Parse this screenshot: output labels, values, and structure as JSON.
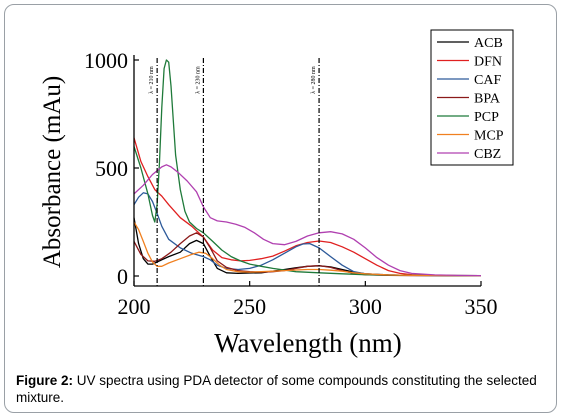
{
  "chart_data": {
    "type": "line",
    "xlabel": "Wavelength (nm)",
    "ylabel": "Absorbance (mAu)",
    "xlim": [
      200,
      350
    ],
    "ylim": [
      0,
      1000
    ],
    "x_ticks": [
      200,
      250,
      300,
      350
    ],
    "y_ticks": [
      0,
      500,
      1000
    ],
    "legend_position": "top-right",
    "grid": false,
    "annotations": [
      {
        "x": 210,
        "label": "λ = 210 nm"
      },
      {
        "x": 230,
        "label": "λ = 230 nm"
      },
      {
        "x": 280,
        "label": "λ = 280 nm"
      }
    ],
    "series": [
      {
        "name": "ACB",
        "color": "#000000",
        "points": [
          [
            200,
            270
          ],
          [
            202,
            150
          ],
          [
            204,
            80
          ],
          [
            206,
            55
          ],
          [
            208,
            55
          ],
          [
            210,
            65
          ],
          [
            212,
            75
          ],
          [
            215,
            90
          ],
          [
            220,
            110
          ],
          [
            224,
            150
          ],
          [
            227,
            165
          ],
          [
            230,
            150
          ],
          [
            233,
            90
          ],
          [
            236,
            35
          ],
          [
            240,
            15
          ],
          [
            245,
            12
          ],
          [
            250,
            14
          ],
          [
            255,
            15
          ],
          [
            260,
            22
          ],
          [
            265,
            30
          ],
          [
            270,
            38
          ],
          [
            275,
            45
          ],
          [
            280,
            47
          ],
          [
            285,
            42
          ],
          [
            290,
            30
          ],
          [
            295,
            18
          ],
          [
            300,
            10
          ],
          [
            310,
            5
          ],
          [
            320,
            3
          ],
          [
            335,
            2
          ],
          [
            350,
            2
          ]
        ]
      },
      {
        "name": "DFN",
        "color": "#e02020",
        "points": [
          [
            200,
            640
          ],
          [
            203,
            530
          ],
          [
            206,
            460
          ],
          [
            209,
            400
          ],
          [
            212,
            370
          ],
          [
            215,
            330
          ],
          [
            220,
            270
          ],
          [
            225,
            230
          ],
          [
            230,
            180
          ],
          [
            234,
            120
          ],
          [
            238,
            85
          ],
          [
            242,
            75
          ],
          [
            246,
            70
          ],
          [
            250,
            72
          ],
          [
            255,
            80
          ],
          [
            260,
            92
          ],
          [
            265,
            115
          ],
          [
            270,
            140
          ],
          [
            275,
            155
          ],
          [
            280,
            162
          ],
          [
            285,
            155
          ],
          [
            290,
            135
          ],
          [
            295,
            110
          ],
          [
            300,
            80
          ],
          [
            305,
            50
          ],
          [
            310,
            25
          ],
          [
            315,
            12
          ],
          [
            320,
            6
          ],
          [
            330,
            3
          ],
          [
            340,
            2
          ],
          [
            350,
            2
          ]
        ]
      },
      {
        "name": "CAF",
        "color": "#2d5a9a",
        "points": [
          [
            200,
            330
          ],
          [
            202,
            365
          ],
          [
            204,
            385
          ],
          [
            206,
            380
          ],
          [
            208,
            345
          ],
          [
            210,
            290
          ],
          [
            212,
            230
          ],
          [
            215,
            170
          ],
          [
            220,
            130
          ],
          [
            225,
            105
          ],
          [
            230,
            90
          ],
          [
            233,
            75
          ],
          [
            236,
            50
          ],
          [
            240,
            35
          ],
          [
            245,
            30
          ],
          [
            250,
            35
          ],
          [
            255,
            50
          ],
          [
            260,
            75
          ],
          [
            265,
            105
          ],
          [
            270,
            135
          ],
          [
            273,
            148
          ],
          [
            276,
            150
          ],
          [
            280,
            130
          ],
          [
            285,
            90
          ],
          [
            290,
            50
          ],
          [
            295,
            20
          ],
          [
            300,
            10
          ],
          [
            310,
            5
          ],
          [
            320,
            3
          ],
          [
            350,
            2
          ]
        ]
      },
      {
        "name": "BPA",
        "color": "#8b1a1a",
        "points": [
          [
            200,
            160
          ],
          [
            203,
            100
          ],
          [
            206,
            70
          ],
          [
            209,
            68
          ],
          [
            212,
            80
          ],
          [
            216,
            110
          ],
          [
            220,
            150
          ],
          [
            224,
            185
          ],
          [
            227,
            200
          ],
          [
            230,
            180
          ],
          [
            233,
            130
          ],
          [
            236,
            70
          ],
          [
            240,
            40
          ],
          [
            245,
            25
          ],
          [
            250,
            20
          ],
          [
            255,
            18
          ],
          [
            260,
            20
          ],
          [
            265,
            25
          ],
          [
            270,
            35
          ],
          [
            275,
            45
          ],
          [
            280,
            48
          ],
          [
            285,
            40
          ],
          [
            290,
            25
          ],
          [
            295,
            12
          ],
          [
            300,
            6
          ],
          [
            310,
            3
          ],
          [
            320,
            2
          ],
          [
            350,
            2
          ]
        ]
      },
      {
        "name": "PCP",
        "color": "#1f7a3a",
        "points": [
          [
            200,
            600
          ],
          [
            203,
            500
          ],
          [
            206,
            380
          ],
          [
            208,
            280
          ],
          [
            209,
            250
          ],
          [
            210,
            330
          ],
          [
            211,
            520
          ],
          [
            212,
            780
          ],
          [
            213,
            960
          ],
          [
            214,
            1000
          ],
          [
            215,
            990
          ],
          [
            216,
            880
          ],
          [
            217,
            720
          ],
          [
            218,
            560
          ],
          [
            220,
            400
          ],
          [
            222,
            300
          ],
          [
            224,
            250
          ],
          [
            227,
            220
          ],
          [
            230,
            200
          ],
          [
            234,
            160
          ],
          [
            238,
            120
          ],
          [
            242,
            90
          ],
          [
            246,
            70
          ],
          [
            250,
            55
          ],
          [
            255,
            45
          ],
          [
            260,
            35
          ],
          [
            270,
            20
          ],
          [
            280,
            15
          ],
          [
            290,
            10
          ],
          [
            300,
            6
          ],
          [
            320,
            3
          ],
          [
            350,
            2
          ]
        ]
      },
      {
        "name": "MCP",
        "color": "#f08020",
        "points": [
          [
            200,
            250
          ],
          [
            202,
            215
          ],
          [
            204,
            160
          ],
          [
            206,
            105
          ],
          [
            208,
            65
          ],
          [
            210,
            45
          ],
          [
            212,
            45
          ],
          [
            215,
            60
          ],
          [
            220,
            80
          ],
          [
            225,
            100
          ],
          [
            228,
            110
          ],
          [
            231,
            105
          ],
          [
            234,
            80
          ],
          [
            237,
            50
          ],
          [
            240,
            30
          ],
          [
            245,
            20
          ],
          [
            250,
            18
          ],
          [
            255,
            20
          ],
          [
            260,
            22
          ],
          [
            265,
            25
          ],
          [
            270,
            28
          ],
          [
            275,
            30
          ],
          [
            280,
            30
          ],
          [
            285,
            27
          ],
          [
            290,
            22
          ],
          [
            295,
            15
          ],
          [
            300,
            10
          ],
          [
            310,
            5
          ],
          [
            320,
            3
          ],
          [
            350,
            2
          ]
        ]
      },
      {
        "name": "CBZ",
        "color": "#b040b0",
        "points": [
          [
            200,
            380
          ],
          [
            204,
            420
          ],
          [
            208,
            470
          ],
          [
            212,
            505
          ],
          [
            214,
            515
          ],
          [
            216,
            505
          ],
          [
            219,
            480
          ],
          [
            223,
            440
          ],
          [
            227,
            390
          ],
          [
            230,
            320
          ],
          [
            233,
            270
          ],
          [
            236,
            255
          ],
          [
            240,
            250
          ],
          [
            244,
            240
          ],
          [
            248,
            225
          ],
          [
            252,
            200
          ],
          [
            256,
            170
          ],
          [
            260,
            150
          ],
          [
            265,
            145
          ],
          [
            270,
            160
          ],
          [
            275,
            185
          ],
          [
            280,
            200
          ],
          [
            285,
            205
          ],
          [
            290,
            195
          ],
          [
            295,
            170
          ],
          [
            300,
            130
          ],
          [
            305,
            85
          ],
          [
            310,
            50
          ],
          [
            315,
            25
          ],
          [
            320,
            12
          ],
          [
            330,
            5
          ],
          [
            340,
            3
          ],
          [
            350,
            2
          ]
        ]
      }
    ]
  },
  "caption": {
    "label": "Figure 2:",
    "text": " UV spectra using PDA detector of some compounds constituting the selected mixture."
  }
}
